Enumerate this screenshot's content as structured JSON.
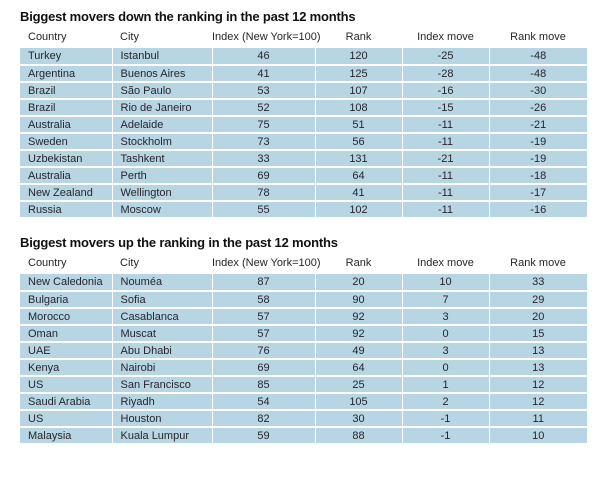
{
  "colors": {
    "row_background": "#b7d5e3",
    "text": "#26262c",
    "title_text": "#111111",
    "page_background": "#ffffff"
  },
  "chart_data": [
    {
      "type": "table",
      "title": "Biggest movers down the ranking in the past 12 months",
      "columns": [
        "Country",
        "City",
        "Index (New York=100)",
        "Rank",
        "Index move",
        "Rank move"
      ],
      "rows": [
        [
          "Turkey",
          "Istanbul",
          "46",
          "120",
          "-25",
          "-48"
        ],
        [
          "Argentina",
          "Buenos Aires",
          "41",
          "125",
          "-28",
          "-48"
        ],
        [
          "Brazil",
          "São Paulo",
          "53",
          "107",
          "-16",
          "-30"
        ],
        [
          "Brazil",
          "Rio de Janeiro",
          "52",
          "108",
          "-15",
          "-26"
        ],
        [
          "Australia",
          "Adelaide",
          "75",
          "51",
          "-11",
          "-21"
        ],
        [
          "Sweden",
          "Stockholm",
          "73",
          "56",
          "-11",
          "-19"
        ],
        [
          "Uzbekistan",
          "Tashkent",
          "33",
          "131",
          "-21",
          "-19"
        ],
        [
          "Australia",
          "Perth",
          "69",
          "64",
          "-11",
          "-18"
        ],
        [
          "New Zealand",
          "Wellington",
          "78",
          "41",
          "-11",
          "-17"
        ],
        [
          "Russia",
          "Moscow",
          "55",
          "102",
          "-11",
          "-16"
        ]
      ]
    },
    {
      "type": "table",
      "title": "Biggest movers up the ranking in the past 12 months",
      "columns": [
        "Country",
        "City",
        "Index (New York=100)",
        "Rank",
        "Index move",
        "Rank move"
      ],
      "rows": [
        [
          "New Caledonia",
          "Nouméa",
          "87",
          "20",
          "10",
          "33"
        ],
        [
          "Bulgaria",
          "Sofia",
          "58",
          "90",
          "7",
          "29"
        ],
        [
          "Morocco",
          "Casablanca",
          "57",
          "92",
          "3",
          "20"
        ],
        [
          "Oman",
          "Muscat",
          "57",
          "92",
          "0",
          "15"
        ],
        [
          "UAE",
          "Abu Dhabi",
          "76",
          "49",
          "3",
          "13"
        ],
        [
          "Kenya",
          "Nairobi",
          "69",
          "64",
          "0",
          "13"
        ],
        [
          "US",
          "San Francisco",
          "85",
          "25",
          "1",
          "12"
        ],
        [
          "Saudi Arabia",
          "Riyadh",
          "54",
          "105",
          "2",
          "12"
        ],
        [
          "US",
          "Houston",
          "82",
          "30",
          "-1",
          "11"
        ],
        [
          "Malaysia",
          "Kuala Lumpur",
          "59",
          "88",
          "-1",
          "10"
        ]
      ]
    }
  ]
}
